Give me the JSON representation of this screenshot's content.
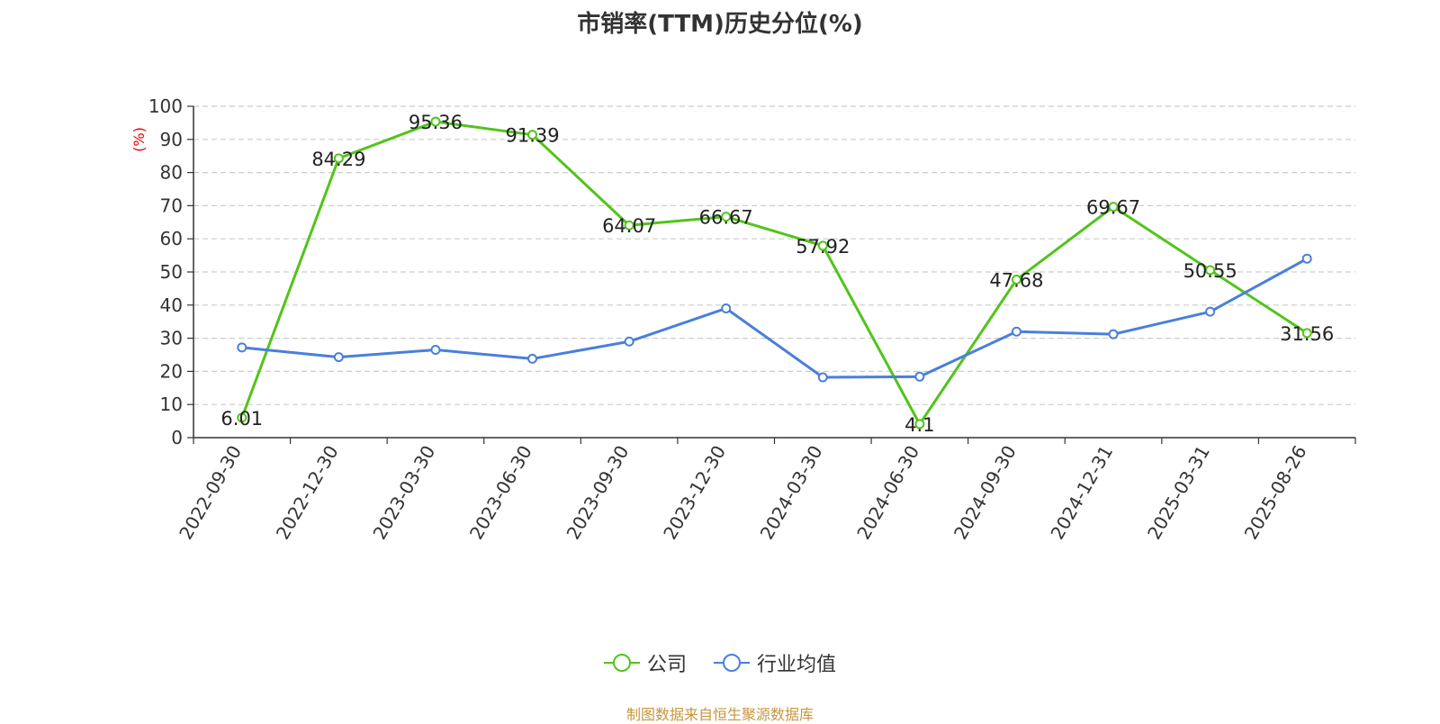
{
  "chart_data": {
    "type": "line",
    "title": "市销率(TTM)历史分位(%)",
    "ylabel": "(%)",
    "xlabel": "",
    "ylim": [
      0,
      100
    ],
    "yticks": [
      0,
      10,
      20,
      30,
      40,
      50,
      60,
      70,
      80,
      90,
      100
    ],
    "grid": true,
    "legend_position": "bottom",
    "categories": [
      "2022-09-30",
      "2022-12-30",
      "2023-03-30",
      "2023-06-30",
      "2023-09-30",
      "2023-12-30",
      "2024-03-30",
      "2024-06-30",
      "2024-09-30",
      "2024-12-31",
      "2025-03-31",
      "2025-08-26"
    ],
    "series": [
      {
        "name": "公司",
        "color": "#52c41a",
        "values": [
          6.01,
          84.29,
          95.36,
          91.39,
          64.07,
          66.67,
          57.92,
          4.1,
          47.68,
          69.67,
          50.55,
          31.56
        ],
        "show_labels": true
      },
      {
        "name": "行业均值",
        "color": "#4a7fdb",
        "values": [
          27.2,
          24.3,
          26.5,
          23.8,
          29.0,
          39.0,
          18.2,
          18.4,
          32.0,
          31.2,
          38.0,
          54.0
        ],
        "show_labels": false
      }
    ]
  },
  "source_note": "制图数据来自恒生聚源数据库"
}
